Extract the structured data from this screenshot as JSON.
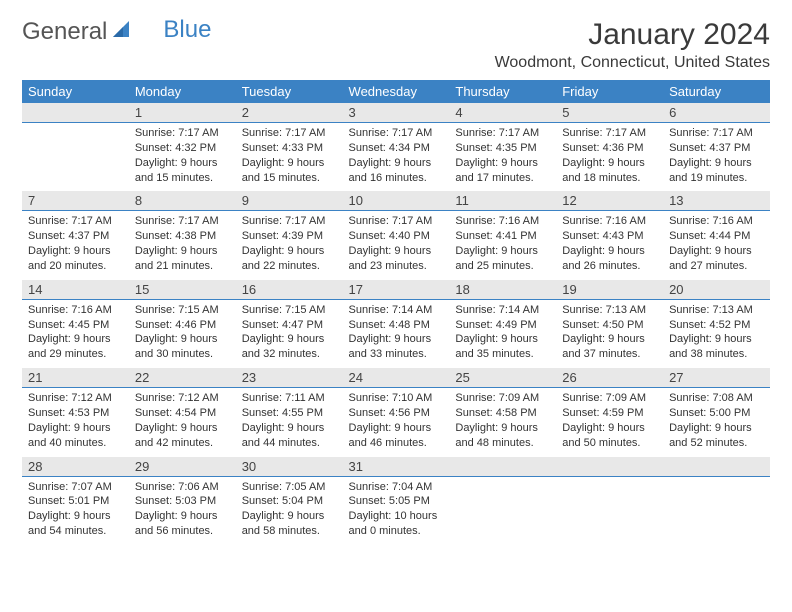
{
  "logo": {
    "text1": "General",
    "text2": "Blue"
  },
  "title": "January 2024",
  "location": "Woodmont, Connecticut, United States",
  "colors": {
    "header_bg": "#3b82c4",
    "header_fg": "#ffffff",
    "daybar_bg": "#e8e8e8",
    "daybar_border": "#3b82c4",
    "text": "#333333",
    "bg": "#ffffff"
  },
  "weekdays": [
    "Sunday",
    "Monday",
    "Tuesday",
    "Wednesday",
    "Thursday",
    "Friday",
    "Saturday"
  ],
  "weeks": [
    [
      null,
      {
        "n": "1",
        "sr": "7:17 AM",
        "ss": "4:32 PM",
        "dl": "9 hours and 15 minutes."
      },
      {
        "n": "2",
        "sr": "7:17 AM",
        "ss": "4:33 PM",
        "dl": "9 hours and 15 minutes."
      },
      {
        "n": "3",
        "sr": "7:17 AM",
        "ss": "4:34 PM",
        "dl": "9 hours and 16 minutes."
      },
      {
        "n": "4",
        "sr": "7:17 AM",
        "ss": "4:35 PM",
        "dl": "9 hours and 17 minutes."
      },
      {
        "n": "5",
        "sr": "7:17 AM",
        "ss": "4:36 PM",
        "dl": "9 hours and 18 minutes."
      },
      {
        "n": "6",
        "sr": "7:17 AM",
        "ss": "4:37 PM",
        "dl": "9 hours and 19 minutes."
      }
    ],
    [
      {
        "n": "7",
        "sr": "7:17 AM",
        "ss": "4:37 PM",
        "dl": "9 hours and 20 minutes."
      },
      {
        "n": "8",
        "sr": "7:17 AM",
        "ss": "4:38 PM",
        "dl": "9 hours and 21 minutes."
      },
      {
        "n": "9",
        "sr": "7:17 AM",
        "ss": "4:39 PM",
        "dl": "9 hours and 22 minutes."
      },
      {
        "n": "10",
        "sr": "7:17 AM",
        "ss": "4:40 PM",
        "dl": "9 hours and 23 minutes."
      },
      {
        "n": "11",
        "sr": "7:16 AM",
        "ss": "4:41 PM",
        "dl": "9 hours and 25 minutes."
      },
      {
        "n": "12",
        "sr": "7:16 AM",
        "ss": "4:43 PM",
        "dl": "9 hours and 26 minutes."
      },
      {
        "n": "13",
        "sr": "7:16 AM",
        "ss": "4:44 PM",
        "dl": "9 hours and 27 minutes."
      }
    ],
    [
      {
        "n": "14",
        "sr": "7:16 AM",
        "ss": "4:45 PM",
        "dl": "9 hours and 29 minutes."
      },
      {
        "n": "15",
        "sr": "7:15 AM",
        "ss": "4:46 PM",
        "dl": "9 hours and 30 minutes."
      },
      {
        "n": "16",
        "sr": "7:15 AM",
        "ss": "4:47 PM",
        "dl": "9 hours and 32 minutes."
      },
      {
        "n": "17",
        "sr": "7:14 AM",
        "ss": "4:48 PM",
        "dl": "9 hours and 33 minutes."
      },
      {
        "n": "18",
        "sr": "7:14 AM",
        "ss": "4:49 PM",
        "dl": "9 hours and 35 minutes."
      },
      {
        "n": "19",
        "sr": "7:13 AM",
        "ss": "4:50 PM",
        "dl": "9 hours and 37 minutes."
      },
      {
        "n": "20",
        "sr": "7:13 AM",
        "ss": "4:52 PM",
        "dl": "9 hours and 38 minutes."
      }
    ],
    [
      {
        "n": "21",
        "sr": "7:12 AM",
        "ss": "4:53 PM",
        "dl": "9 hours and 40 minutes."
      },
      {
        "n": "22",
        "sr": "7:12 AM",
        "ss": "4:54 PM",
        "dl": "9 hours and 42 minutes."
      },
      {
        "n": "23",
        "sr": "7:11 AM",
        "ss": "4:55 PM",
        "dl": "9 hours and 44 minutes."
      },
      {
        "n": "24",
        "sr": "7:10 AM",
        "ss": "4:56 PM",
        "dl": "9 hours and 46 minutes."
      },
      {
        "n": "25",
        "sr": "7:09 AM",
        "ss": "4:58 PM",
        "dl": "9 hours and 48 minutes."
      },
      {
        "n": "26",
        "sr": "7:09 AM",
        "ss": "4:59 PM",
        "dl": "9 hours and 50 minutes."
      },
      {
        "n": "27",
        "sr": "7:08 AM",
        "ss": "5:00 PM",
        "dl": "9 hours and 52 minutes."
      }
    ],
    [
      {
        "n": "28",
        "sr": "7:07 AM",
        "ss": "5:01 PM",
        "dl": "9 hours and 54 minutes."
      },
      {
        "n": "29",
        "sr": "7:06 AM",
        "ss": "5:03 PM",
        "dl": "9 hours and 56 minutes."
      },
      {
        "n": "30",
        "sr": "7:05 AM",
        "ss": "5:04 PM",
        "dl": "9 hours and 58 minutes."
      },
      {
        "n": "31",
        "sr": "7:04 AM",
        "ss": "5:05 PM",
        "dl": "10 hours and 0 minutes."
      },
      null,
      null,
      null
    ]
  ],
  "labels": {
    "sunrise": "Sunrise:",
    "sunset": "Sunset:",
    "daylight": "Daylight:"
  }
}
